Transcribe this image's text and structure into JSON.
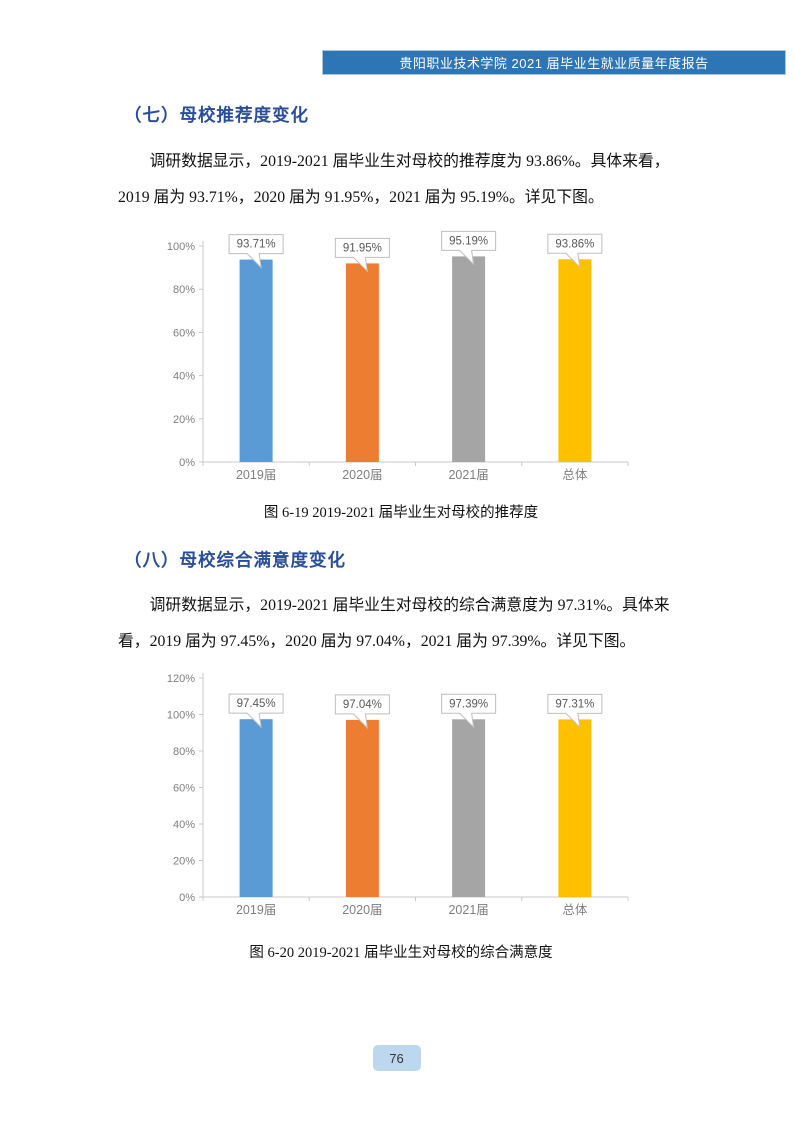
{
  "header": {
    "title": "贵阳职业技术学院 2021 届毕业生就业质量年度报告"
  },
  "sections": [
    {
      "heading": "（七）母校推荐度变化",
      "paragraph_lines": [
        "调研数据显示，2019-2021 届毕业生对母校的推荐度为 93.86%。具体来看，",
        "2019 届为 93.71%，2020 届为 91.95%，2021 届为 95.19%。详见下图。"
      ],
      "caption": "图 6-19 2019-2021 届毕业生对母校的推荐度"
    },
    {
      "heading": "（八）母校综合满意度变化",
      "paragraph_lines": [
        "调研数据显示，2019-2021 届毕业生对母校的综合满意度为 97.31%。具体来",
        "看，2019 届为 97.45%，2020 届为 97.04%，2021 届为 97.39%。详见下图。"
      ],
      "caption": "图 6-20 2019-2021 届毕业生对母校的综合满意度"
    }
  ],
  "chart_data": [
    {
      "type": "bar",
      "title": "图 6-19 2019-2021 届毕业生对母校的推荐度",
      "categories": [
        "2019届",
        "2020届",
        "2021届",
        "总体"
      ],
      "values": [
        93.71,
        91.95,
        95.19,
        93.86
      ],
      "data_labels": [
        "93.71%",
        "91.95%",
        "95.19%",
        "93.86%"
      ],
      "bar_colors": [
        "#5B9BD5",
        "#ED7D31",
        "#A5A5A5",
        "#FFC000"
      ],
      "xlabel": "",
      "ylabel": "",
      "ylim": [
        0,
        100
      ],
      "ytick_step": 20,
      "ytick_labels": [
        "0%",
        "20%",
        "40%",
        "60%",
        "80%",
        "100%"
      ],
      "grid": false,
      "legend": "none",
      "data_label_style": "callout"
    },
    {
      "type": "bar",
      "title": "图 6-20 2019-2021 届毕业生对母校的综合满意度",
      "categories": [
        "2019届",
        "2020届",
        "2021届",
        "总体"
      ],
      "values": [
        97.45,
        97.04,
        97.39,
        97.31
      ],
      "data_labels": [
        "97.45%",
        "97.04%",
        "97.39%",
        "97.31%"
      ],
      "bar_colors": [
        "#5B9BD5",
        "#ED7D31",
        "#A5A5A5",
        "#FFC000"
      ],
      "xlabel": "",
      "ylabel": "",
      "ylim": [
        0,
        120
      ],
      "ytick_step": 20,
      "ytick_labels": [
        "0%",
        "20%",
        "40%",
        "60%",
        "80%",
        "100%",
        "120%"
      ],
      "grid": false,
      "legend": "none",
      "data_label_style": "callout"
    }
  ],
  "page": {
    "number": "76"
  },
  "colors": {
    "header_bg": "#2E75B6",
    "header_text": "#FFFFFF",
    "heading_text": "#2B4E9B",
    "axis_line": "#C9C9C9",
    "axis_text": "#7F7F7F",
    "callout_border": "#BFBFBF",
    "callout_text": "#595959",
    "page_badge_bg": "#BDD7EE"
  }
}
